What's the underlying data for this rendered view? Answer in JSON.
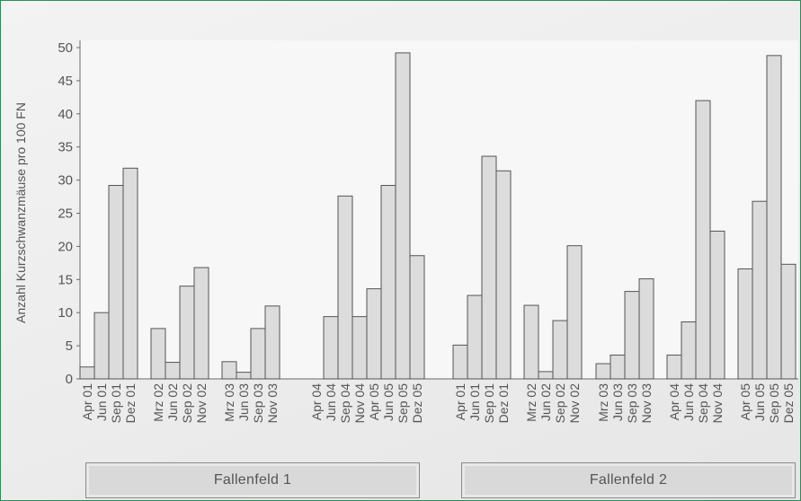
{
  "chart_data": {
    "type": "bar",
    "ylabel": "Anzahl Kurzschwanzmäuse pro 100 FN",
    "ylim": [
      0,
      50
    ],
    "yticks": [
      0,
      5,
      10,
      15,
      20,
      25,
      30,
      35,
      40,
      45,
      50
    ],
    "grid": false,
    "bar_color": "#dcdcdc",
    "bar_edge": "#555555",
    "groups": [
      {
        "label": "Fallenfeld 1",
        "clusters": [
          {
            "categories": [
              "Apr 01",
              "Jun 01",
              "Sep 01",
              "Dez 01"
            ],
            "values": [
              1.8,
              10,
              29.2,
              31.8
            ]
          },
          {
            "categories": [
              "Mrz 02",
              "Jun 02",
              "Sep 02",
              "Nov 02"
            ],
            "values": [
              7.6,
              2.5,
              14,
              16.8
            ]
          },
          {
            "categories": [
              "Mrz 03",
              "Jun 03",
              "Sep 03",
              "Nov 03"
            ],
            "values": [
              2.6,
              1,
              7.6,
              11
            ]
          },
          {
            "categories": [
              "Apr 04",
              "Jun 04",
              "Sep 04",
              "Nov 04"
            ],
            "values": [
              0,
              9.4,
              27.6,
              9.4
            ]
          },
          {
            "categories": [
              "Apr 05",
              "Jun 05",
              "Sep 05",
              "Dez 05"
            ],
            "values": [
              13.6,
              29.2,
              49.2,
              18.6
            ]
          }
        ]
      },
      {
        "label": "Fallenfeld 2",
        "clusters": [
          {
            "categories": [
              "Apr 01",
              "Jun 01",
              "Sep 01",
              "Dez 01"
            ],
            "values": [
              5.1,
              12.6,
              33.6,
              31.4
            ]
          },
          {
            "categories": [
              "Mrz 02",
              "Jun 02",
              "Sep 02",
              "Nov 02"
            ],
            "values": [
              11.1,
              1.1,
              8.8,
              20.1
            ]
          },
          {
            "categories": [
              "Mrz 03",
              "Jun 03",
              "Sep 03",
              "Nov 03"
            ],
            "values": [
              2.3,
              3.6,
              13.2,
              15.1
            ]
          },
          {
            "categories": [
              "Apr 04",
              "Jun 04",
              "Sep 04",
              "Nov 04"
            ],
            "values": [
              3.6,
              8.6,
              42,
              22.3
            ]
          },
          {
            "categories": [
              "Apr 05",
              "Jun 05",
              "Sep 05",
              "Dez 05"
            ],
            "values": [
              16.6,
              26.8,
              48.8,
              17.3
            ]
          }
        ]
      }
    ]
  }
}
